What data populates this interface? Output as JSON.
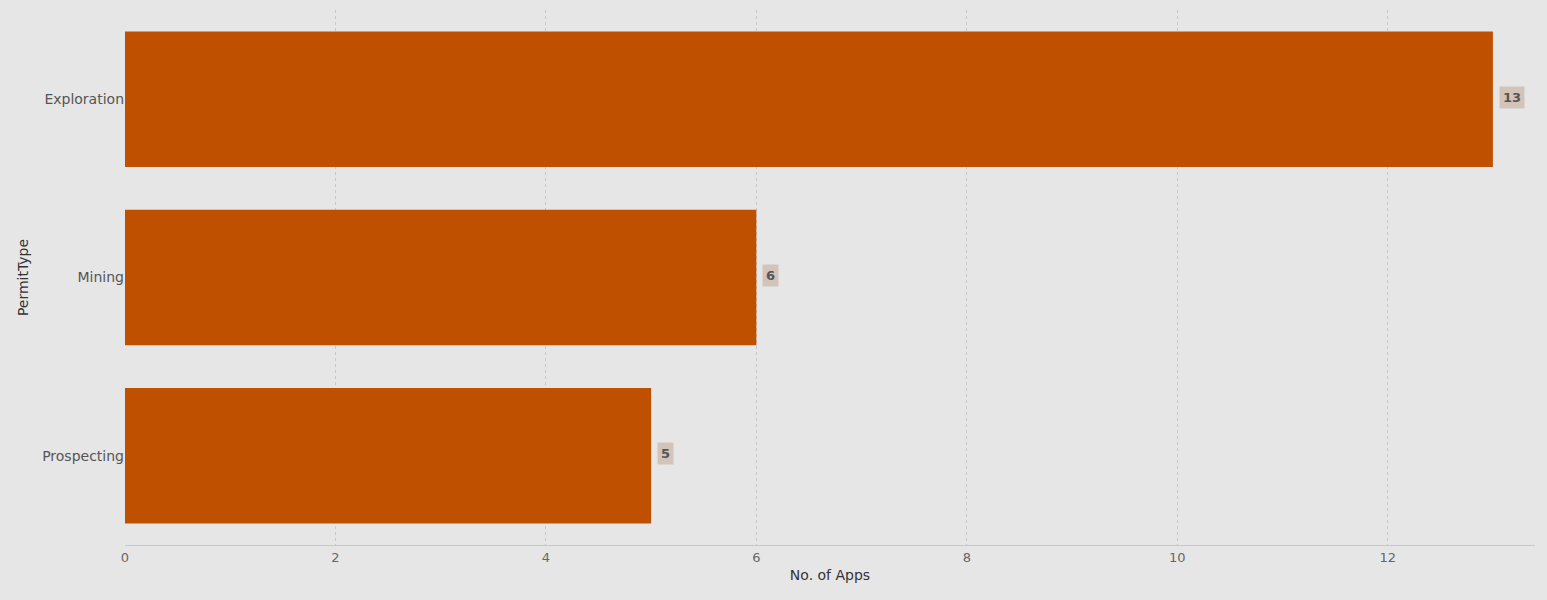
{
  "chart_data": {
    "type": "bar",
    "orientation": "horizontal",
    "categories": [
      "Exploration",
      "Mining",
      "Prospecting"
    ],
    "values": [
      13,
      6,
      5
    ],
    "color": "#bf5000",
    "x_label": "No. of Apps",
    "y_label": "PermitType",
    "xlim": [
      0,
      13.4
    ],
    "xticks": [
      0,
      2,
      4,
      6,
      8,
      10,
      12
    ],
    "grid": true,
    "data_labels": true
  }
}
